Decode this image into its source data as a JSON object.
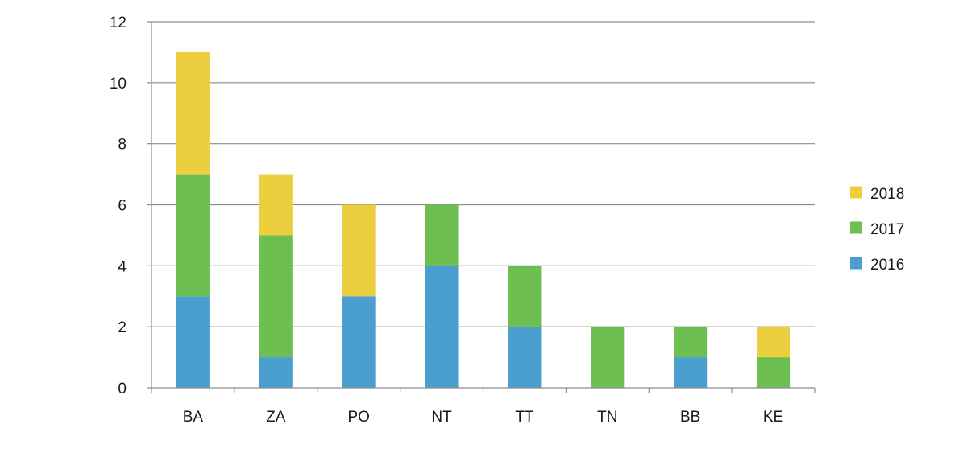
{
  "chart_data": {
    "type": "bar",
    "stacked": true,
    "title": "",
    "xlabel": "",
    "ylabel": "",
    "categories": [
      "BA",
      "ZA",
      "PO",
      "NT",
      "TT",
      "TN",
      "BB",
      "KE"
    ],
    "series": [
      {
        "name": "2016",
        "color": "#4a9fd0",
        "values": [
          3,
          1,
          3,
          4,
          2,
          0,
          1,
          0
        ]
      },
      {
        "name": "2017",
        "color": "#6cbf50",
        "values": [
          4,
          4,
          0,
          2,
          2,
          2,
          1,
          1
        ]
      },
      {
        "name": "2018",
        "color": "#ebcf3f",
        "values": [
          4,
          2,
          3,
          0,
          0,
          0,
          0,
          1
        ]
      }
    ],
    "ylim": [
      0,
      12
    ],
    "yticks": [
      0,
      2,
      4,
      6,
      8,
      10,
      12
    ],
    "grid": true,
    "legend_position": "right",
    "legend_order": [
      "2018",
      "2017",
      "2016"
    ]
  }
}
